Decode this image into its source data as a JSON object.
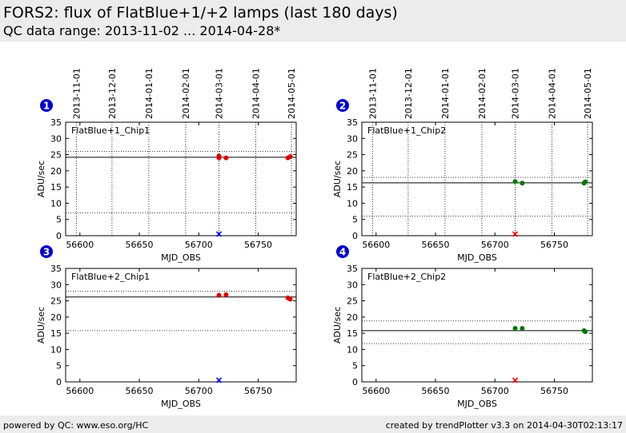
{
  "header": {
    "title": "FORS2: flux of FlatBlue+1/+2 lamps (last 180 days)",
    "subtitle": "QC data range: 2013-11-02 ... 2014-04-28*"
  },
  "footer": {
    "left": "powered by QC: www.eso.org/HC",
    "right": "created by trendPlotter v3.3 on 2014-04-30T02:13:17"
  },
  "colors": {
    "chip1": "#dd0000",
    "chip2": "#007700",
    "outlier_blue": "#0000ff",
    "outlier_red": "#ff0000",
    "badge": "#0000cc"
  },
  "chart_data": [
    {
      "type": "scatter",
      "panel": "1",
      "label": "FlatBlue+1_Chip1",
      "xlabel": "MJD_OBS",
      "ylabel": "ADU/sec",
      "xlim": [
        56588,
        56782
      ],
      "ylim": [
        0,
        35
      ],
      "xticks": [
        56600,
        56650,
        56700,
        56750
      ],
      "yticks": [
        0,
        5,
        10,
        15,
        20,
        25,
        30,
        35
      ],
      "top_date_ticks": [
        "2013-11-01",
        "2013-12-01",
        "2014-01-01",
        "2014-02-01",
        "2014-03-01",
        "2014-04-01",
        "2014-05-01"
      ],
      "date_mjd": [
        56597,
        56627,
        56658,
        56689,
        56717,
        56748,
        56778
      ],
      "reference_line": 24.2,
      "limit_lines": [
        26.0,
        7.0
      ],
      "color_key": "chip1",
      "points": [
        [
          56717,
          24.6
        ],
        [
          56717,
          24.0
        ],
        [
          56723,
          24.0
        ],
        [
          56775,
          24.0
        ],
        [
          56777,
          24.4
        ]
      ],
      "outliers": [
        {
          "x": 56717,
          "y": 0.5,
          "color_key": "outlier_blue"
        }
      ]
    },
    {
      "type": "scatter",
      "panel": "2",
      "label": "FlatBlue+1_Chip2",
      "xlabel": "MJD_OBS",
      "ylabel": "ADU/sec",
      "xlim": [
        56588,
        56782
      ],
      "ylim": [
        0,
        35
      ],
      "xticks": [
        56600,
        56650,
        56700,
        56750
      ],
      "yticks": [
        0,
        5,
        10,
        15,
        20,
        25,
        30,
        35
      ],
      "top_date_ticks": [
        "2013-11-01",
        "2013-12-01",
        "2014-01-01",
        "2014-02-01",
        "2014-03-01",
        "2014-04-01",
        "2014-05-01"
      ],
      "date_mjd": [
        56597,
        56627,
        56658,
        56689,
        56717,
        56748,
        56778
      ],
      "reference_line": 16.3,
      "limit_lines": [
        18.0,
        6.0
      ],
      "color_key": "chip2",
      "points": [
        [
          56717,
          16.7
        ],
        [
          56723,
          16.2
        ],
        [
          56775,
          16.2
        ],
        [
          56776,
          16.6
        ]
      ],
      "outliers": [
        {
          "x": 56717,
          "y": 0.2,
          "color_key": "outlier_red"
        }
      ]
    },
    {
      "type": "scatter",
      "panel": "3",
      "label": "FlatBlue+2_Chip1",
      "xlabel": "MJD_OBS",
      "ylabel": "ADU/sec",
      "xlim": [
        56588,
        56782
      ],
      "ylim": [
        0,
        35
      ],
      "xticks": [
        56600,
        56650,
        56700,
        56750
      ],
      "yticks": [
        0,
        5,
        10,
        15,
        20,
        25,
        30,
        35
      ],
      "reference_line": 26.2,
      "limit_lines": [
        28.0,
        15.8
      ],
      "color_key": "chip1",
      "points": [
        [
          56717,
          26.7
        ],
        [
          56723,
          26.9
        ],
        [
          56775,
          25.9
        ],
        [
          56777,
          25.5
        ]
      ],
      "outliers": [
        {
          "x": 56717,
          "y": 0.5,
          "color_key": "outlier_blue"
        }
      ]
    },
    {
      "type": "scatter",
      "panel": "4",
      "label": "FlatBlue+2_Chip2",
      "xlabel": "MJD_OBS",
      "ylabel": "ADU/sec",
      "xlim": [
        56588,
        56782
      ],
      "ylim": [
        0,
        35
      ],
      "xticks": [
        56600,
        56650,
        56700,
        56750
      ],
      "yticks": [
        0,
        5,
        10,
        15,
        20,
        25,
        30,
        35
      ],
      "reference_line": 15.8,
      "limit_lines": [
        18.8,
        11.8
      ],
      "color_key": "chip2",
      "points": [
        [
          56717,
          16.5
        ],
        [
          56723,
          16.5
        ],
        [
          56775,
          15.8
        ],
        [
          56776,
          15.5
        ]
      ],
      "outliers": [
        {
          "x": 56717,
          "y": 0.2,
          "color_key": "outlier_red"
        }
      ]
    }
  ]
}
